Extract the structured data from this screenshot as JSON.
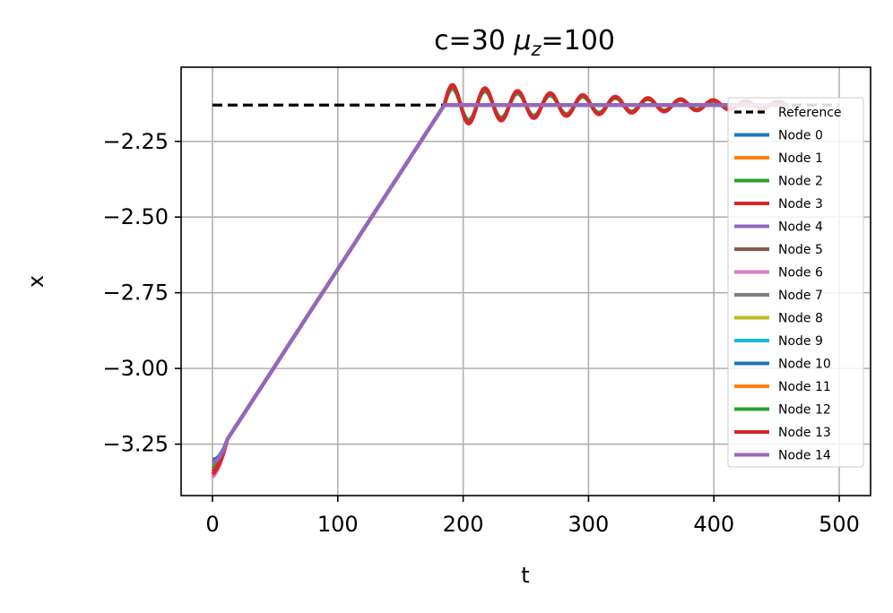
{
  "chart_data": {
    "type": "line",
    "title_prefix": "c=30 ",
    "title_mu": "μ",
    "title_sub": "z",
    "title_suffix": "=100",
    "xlabel": "t",
    "ylabel": "x",
    "xlim": [
      -25,
      525
    ],
    "ylim": [
      -3.42,
      -2.005
    ],
    "xticks": [
      0,
      100,
      200,
      300,
      400,
      500
    ],
    "xtick_labels": [
      "0",
      "100",
      "200",
      "300",
      "400",
      "500"
    ],
    "yticks": [
      -2.25,
      -2.5,
      -2.75,
      -3.0,
      -3.25
    ],
    "ytick_labels": [
      "−2.25",
      "−2.50",
      "−2.75",
      "−3.00",
      "−3.25"
    ],
    "grid": true,
    "legend_position": "right",
    "reference": {
      "name": "Reference",
      "value": -2.13,
      "x_range": [
        0,
        500
      ],
      "color": "#000000",
      "style": "dashed"
    },
    "ramp": {
      "t_start": 0,
      "x_start": -3.31,
      "t_end": 185,
      "x_end": -2.13
    },
    "oscillation": {
      "t_start": 185,
      "t_end": 460,
      "period": 26,
      "peak_amplitude": 0.07,
      "decay_time": 150
    },
    "series": [
      {
        "name": "Node 0",
        "color": "#1f77b4",
        "start": -3.3,
        "amp_factor": 0.8
      },
      {
        "name": "Node 1",
        "color": "#ff7f0e",
        "start": -3.32,
        "amp_factor": 0.85
      },
      {
        "name": "Node 2",
        "color": "#2ca02c",
        "start": -3.33,
        "amp_factor": 0.9
      },
      {
        "name": "Node 3",
        "color": "#d62728",
        "start": -3.35,
        "amp_factor": 1.0
      },
      {
        "name": "Node 4",
        "color": "#9467bd",
        "start": -3.31,
        "amp_factor": 0.0
      },
      {
        "name": "Node 5",
        "color": "#8c564b",
        "start": -3.3,
        "amp_factor": 0.0
      },
      {
        "name": "Node 6",
        "color": "#e377c2",
        "start": -3.36,
        "amp_factor": 0.0
      },
      {
        "name": "Node 7",
        "color": "#7f7f7f",
        "start": -3.32,
        "amp_factor": 0.0
      },
      {
        "name": "Node 8",
        "color": "#bcbd22",
        "start": -3.31,
        "amp_factor": 0.0
      },
      {
        "name": "Node 9",
        "color": "#17becf",
        "start": -3.3,
        "amp_factor": 0.0
      },
      {
        "name": "Node 10",
        "color": "#1f77b4",
        "start": -3.3,
        "amp_factor": 0.0
      },
      {
        "name": "Node 11",
        "color": "#ff7f0e",
        "start": -3.31,
        "amp_factor": 0.0
      },
      {
        "name": "Node 12",
        "color": "#2ca02c",
        "start": -3.33,
        "amp_factor": 0.85
      },
      {
        "name": "Node 13",
        "color": "#d62728",
        "start": -3.34,
        "amp_factor": 0.95
      },
      {
        "name": "Node 14",
        "color": "#9467bd",
        "start": -3.31,
        "amp_factor": 0.0
      }
    ]
  }
}
